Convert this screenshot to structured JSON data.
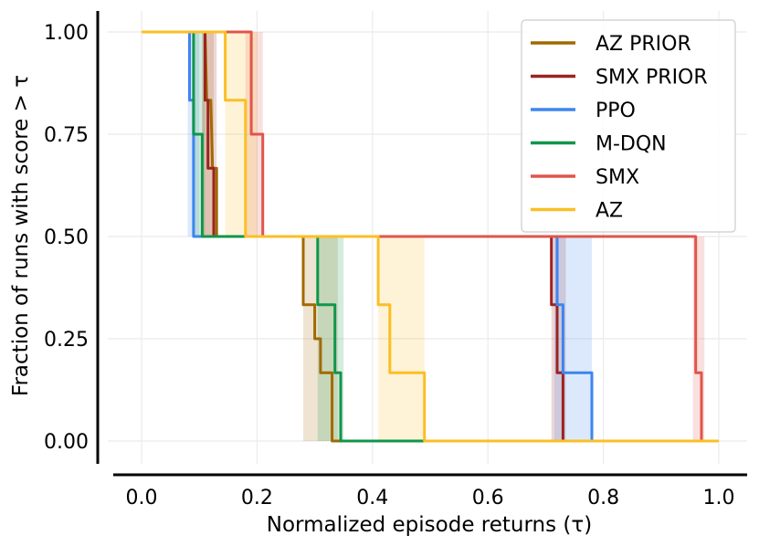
{
  "chart_data": {
    "type": "line",
    "title": "",
    "xlabel": "Normalized episode returns (τ)",
    "ylabel": "Fraction of runs with score  > τ",
    "xlim": [
      -0.04,
      1.04
    ],
    "ylim": [
      -0.05,
      1.05
    ],
    "xticks": [
      0.0,
      0.2,
      0.4,
      0.6,
      0.8,
      1.0
    ],
    "xtick_labels": [
      "0.0",
      "0.2",
      "0.4",
      "0.6",
      "0.8",
      "1.0"
    ],
    "yticks": [
      0.0,
      0.25,
      0.5,
      0.75,
      1.0
    ],
    "ytick_labels": [
      "0.00",
      "0.25",
      "0.50",
      "0.75",
      "1.00"
    ],
    "grid": true,
    "legend_position": "top-right",
    "series": [
      {
        "name": "AZ PRIOR",
        "color": "#a06a00",
        "x": [
          0.0,
          0.11,
          0.113,
          0.12,
          0.123,
          0.13,
          0.13,
          0.28,
          0.28,
          0.3,
          0.3,
          0.31,
          0.31,
          0.33,
          0.33,
          1.0
        ],
        "y": [
          1.0,
          1.0,
          0.8333,
          0.8333,
          0.6667,
          0.6667,
          0.5,
          0.5,
          0.3333,
          0.3333,
          0.25,
          0.25,
          0.1667,
          0.1667,
          0.0,
          0.0
        ],
        "band_lo": [
          [
            0.11,
            0.28,
            0.5,
            0.0
          ]
        ],
        "bands": [
          {
            "x0": 0.105,
            "x1": 0.125,
            "y0": 0.5,
            "y1": 1.0
          },
          {
            "x0": 0.28,
            "x1": 0.34,
            "y0": 0.0,
            "y1": 0.5
          }
        ]
      },
      {
        "name": "SMX PRIOR",
        "color": "#9b2320",
        "x": [
          0.0,
          0.11,
          0.11,
          0.115,
          0.115,
          0.125,
          0.125,
          0.71,
          0.71,
          0.72,
          0.72,
          0.73,
          0.73,
          1.0
        ],
        "y": [
          1.0,
          1.0,
          0.8333,
          0.8333,
          0.6667,
          0.6667,
          0.5,
          0.5,
          0.3333,
          0.3333,
          0.1667,
          0.1667,
          0.0,
          0.0
        ],
        "bands": [
          {
            "x0": 0.105,
            "x1": 0.13,
            "y0": 0.5,
            "y1": 1.0
          },
          {
            "x0": 0.71,
            "x1": 0.735,
            "y0": 0.0,
            "y1": 0.5
          }
        ]
      },
      {
        "name": "PPO",
        "color": "#3d85f0",
        "x": [
          0.0,
          0.083,
          0.083,
          0.09,
          0.09,
          0.72,
          0.72,
          0.73,
          0.73,
          0.78,
          0.78,
          1.0
        ],
        "y": [
          1.0,
          1.0,
          0.8333,
          0.8333,
          0.5,
          0.5,
          0.3333,
          0.3333,
          0.1667,
          0.1667,
          0.0,
          0.0
        ],
        "bands": [
          {
            "x0": 0.08,
            "x1": 0.1,
            "y0": 0.5,
            "y1": 1.0
          },
          {
            "x0": 0.715,
            "x1": 0.78,
            "y0": 0.0,
            "y1": 0.5
          }
        ]
      },
      {
        "name": "M-DQN",
        "color": "#10964a",
        "x": [
          0.0,
          0.09,
          0.09,
          0.105,
          0.105,
          0.305,
          0.305,
          0.315,
          0.315,
          0.335,
          0.335,
          0.345,
          0.345,
          1.0
        ],
        "y": [
          1.0,
          1.0,
          0.75,
          0.75,
          0.5,
          0.5,
          0.3333,
          0.3333,
          0.3333,
          0.3333,
          0.1667,
          0.1667,
          0.0,
          0.0
        ],
        "bands": [
          {
            "x0": 0.09,
            "x1": 0.11,
            "y0": 0.5,
            "y1": 1.0
          },
          {
            "x0": 0.305,
            "x1": 0.35,
            "y0": 0.0,
            "y1": 0.5
          }
        ]
      },
      {
        "name": "SMX",
        "color": "#e0554a",
        "x": [
          0.0,
          0.19,
          0.19,
          0.21,
          0.21,
          0.96,
          0.96,
          0.97,
          0.97,
          1.0
        ],
        "y": [
          1.0,
          1.0,
          0.75,
          0.75,
          0.5,
          0.5,
          0.1667,
          0.1667,
          0.0,
          0.0
        ],
        "bands": [
          {
            "x0": 0.18,
            "x1": 0.21,
            "y0": 0.5,
            "y1": 1.0
          },
          {
            "x0": 0.955,
            "x1": 0.975,
            "y0": 0.0,
            "y1": 0.5
          }
        ]
      },
      {
        "name": "AZ",
        "color": "#fbbf24",
        "x": [
          0.0,
          0.145,
          0.145,
          0.16,
          0.16,
          0.18,
          0.18,
          0.41,
          0.41,
          0.43,
          0.43,
          0.46,
          0.46,
          0.49,
          0.49,
          1.0
        ],
        "y": [
          1.0,
          1.0,
          0.8333,
          0.8333,
          0.8333,
          0.8333,
          0.5,
          0.5,
          0.3333,
          0.3333,
          0.1667,
          0.1667,
          0.1667,
          0.1667,
          0.0,
          0.0
        ],
        "bands": [
          {
            "x0": 0.145,
            "x1": 0.2,
            "y0": 0.5,
            "y1": 1.0
          },
          {
            "x0": 0.41,
            "x1": 0.49,
            "y0": 0.0,
            "y1": 0.5
          }
        ]
      }
    ]
  }
}
